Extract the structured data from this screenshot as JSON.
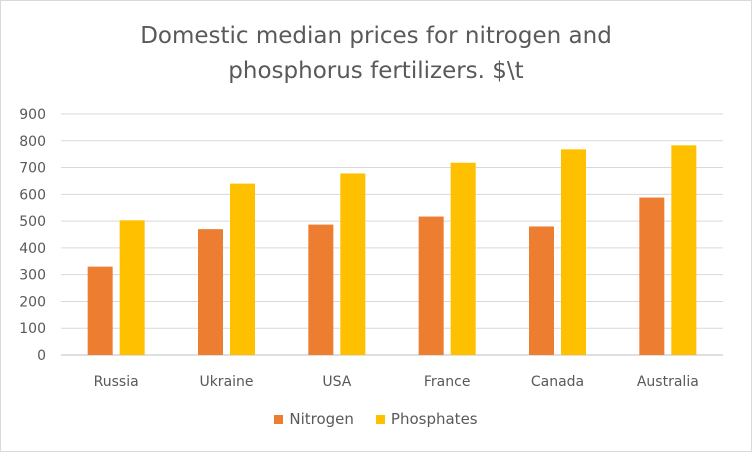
{
  "chart_data": {
    "type": "bar",
    "title": "Domestic median prices for nitrogen and\nphosphorus  fertilizers. $\\t",
    "xlabel": "",
    "ylabel": "",
    "ylim": [
      0,
      900
    ],
    "yticks": [
      "0",
      "100",
      "200",
      "300",
      "400",
      "500",
      "600",
      "700",
      "800",
      "900"
    ],
    "categories": [
      "Russia",
      "Ukraine",
      "USA",
      "France",
      "Canada",
      "Australia"
    ],
    "series": [
      {
        "name": "Nitrogen",
        "color": "#ED7D31",
        "values": [
          330,
          470,
          487,
          517,
          480,
          588
        ]
      },
      {
        "name": "Phosphates",
        "color": "#FFC000",
        "values": [
          503,
          640,
          678,
          718,
          768,
          783
        ]
      }
    ],
    "grid": "horizontal",
    "legend_position": "bottom"
  }
}
